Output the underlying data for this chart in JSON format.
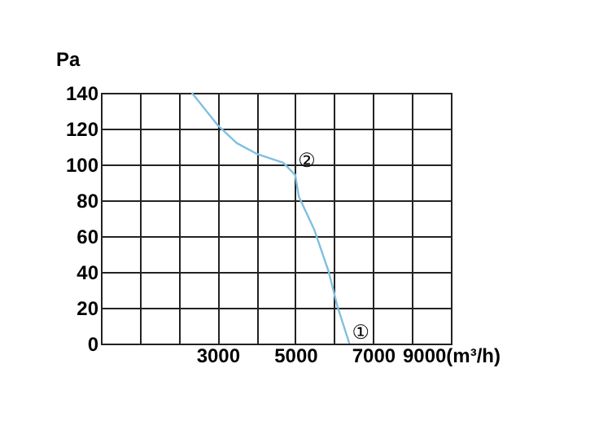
{
  "chart_data": {
    "type": "line",
    "ylabel": "Pa",
    "x": [
      2340,
      3000,
      3490,
      4000,
      4690,
      5000,
      5090,
      5480,
      5860,
      6080,
      6390
    ],
    "series": [
      {
        "color": "#7fc0df",
        "values": [
          140,
          122,
          112,
          106,
          101,
          94,
          82,
          64,
          40,
          21,
          0
        ]
      }
    ],
    "xlim": [
      0,
      9000
    ],
    "xticks": [
      {
        "value": 0,
        "label": null
      },
      {
        "value": 1000,
        "label": null
      },
      {
        "value": 2000,
        "label": null
      },
      3000,
      {
        "value": 4000,
        "label": null
      },
      5000,
      {
        "value": 6000,
        "label": null
      },
      7000,
      {
        "value": 8000,
        "label": null
      },
      {
        "value": 9000,
        "label": "9000(m³/h)"
      }
    ],
    "ylim": [
      0,
      140
    ],
    "yticks": [
      0,
      20,
      40,
      60,
      80,
      100,
      120,
      140
    ],
    "annotations": [
      {
        "text": "②",
        "x": 5000,
        "y": 96
      },
      {
        "text": "①",
        "x": 6390,
        "y": 0
      }
    ],
    "grid": true,
    "marker": "none",
    "line_style": "solid"
  }
}
